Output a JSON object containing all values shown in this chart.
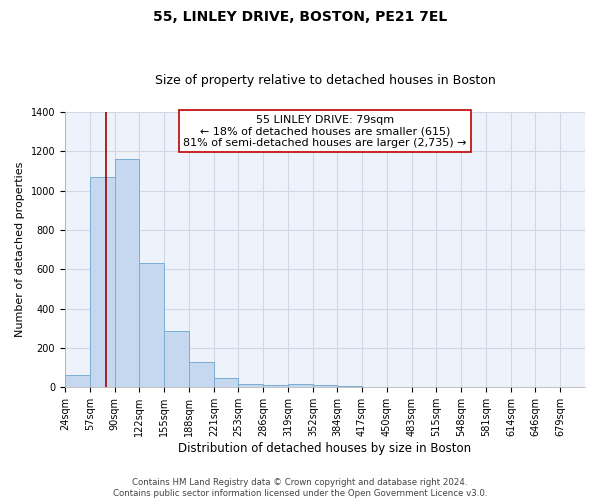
{
  "title": "55, LINLEY DRIVE, BOSTON, PE21 7EL",
  "subtitle": "Size of property relative to detached houses in Boston",
  "xlabel": "Distribution of detached houses by size in Boston",
  "ylabel": "Number of detached properties",
  "bin_labels": [
    "24sqm",
    "57sqm",
    "90sqm",
    "122sqm",
    "155sqm",
    "188sqm",
    "221sqm",
    "253sqm",
    "286sqm",
    "319sqm",
    "352sqm",
    "384sqm",
    "417sqm",
    "450sqm",
    "483sqm",
    "515sqm",
    "548sqm",
    "581sqm",
    "614sqm",
    "646sqm",
    "679sqm"
  ],
  "bin_edges": [
    24,
    57,
    90,
    122,
    155,
    188,
    221,
    253,
    286,
    319,
    352,
    384,
    417,
    450,
    483,
    515,
    548,
    581,
    614,
    646,
    679
  ],
  "bar_heights": [
    65,
    1070,
    1160,
    630,
    285,
    130,
    45,
    18,
    12,
    18,
    12,
    5,
    0,
    0,
    0,
    0,
    0,
    0,
    0,
    0
  ],
  "bar_color": "#c5d8f0",
  "bar_edge_color": "#7aadd4",
  "vline_x": 79,
  "vline_color": "#a00000",
  "ylim": [
    0,
    1400
  ],
  "yticks": [
    0,
    200,
    400,
    600,
    800,
    1000,
    1200,
    1400
  ],
  "annotation_line1": "55 LINLEY DRIVE: 79sqm",
  "annotation_line2": "← 18% of detached houses are smaller (615)",
  "annotation_line3": "81% of semi-detached houses are larger (2,735) →",
  "grid_color": "#d0d8e8",
  "bg_color": "#eef2fa",
  "footer_line1": "Contains HM Land Registry data © Crown copyright and database right 2024.",
  "footer_line2": "Contains public sector information licensed under the Open Government Licence v3.0.",
  "title_fontsize": 10,
  "subtitle_fontsize": 9,
  "annotation_fontsize": 8,
  "tick_fontsize": 7,
  "ylabel_fontsize": 8,
  "xlabel_fontsize": 8.5
}
